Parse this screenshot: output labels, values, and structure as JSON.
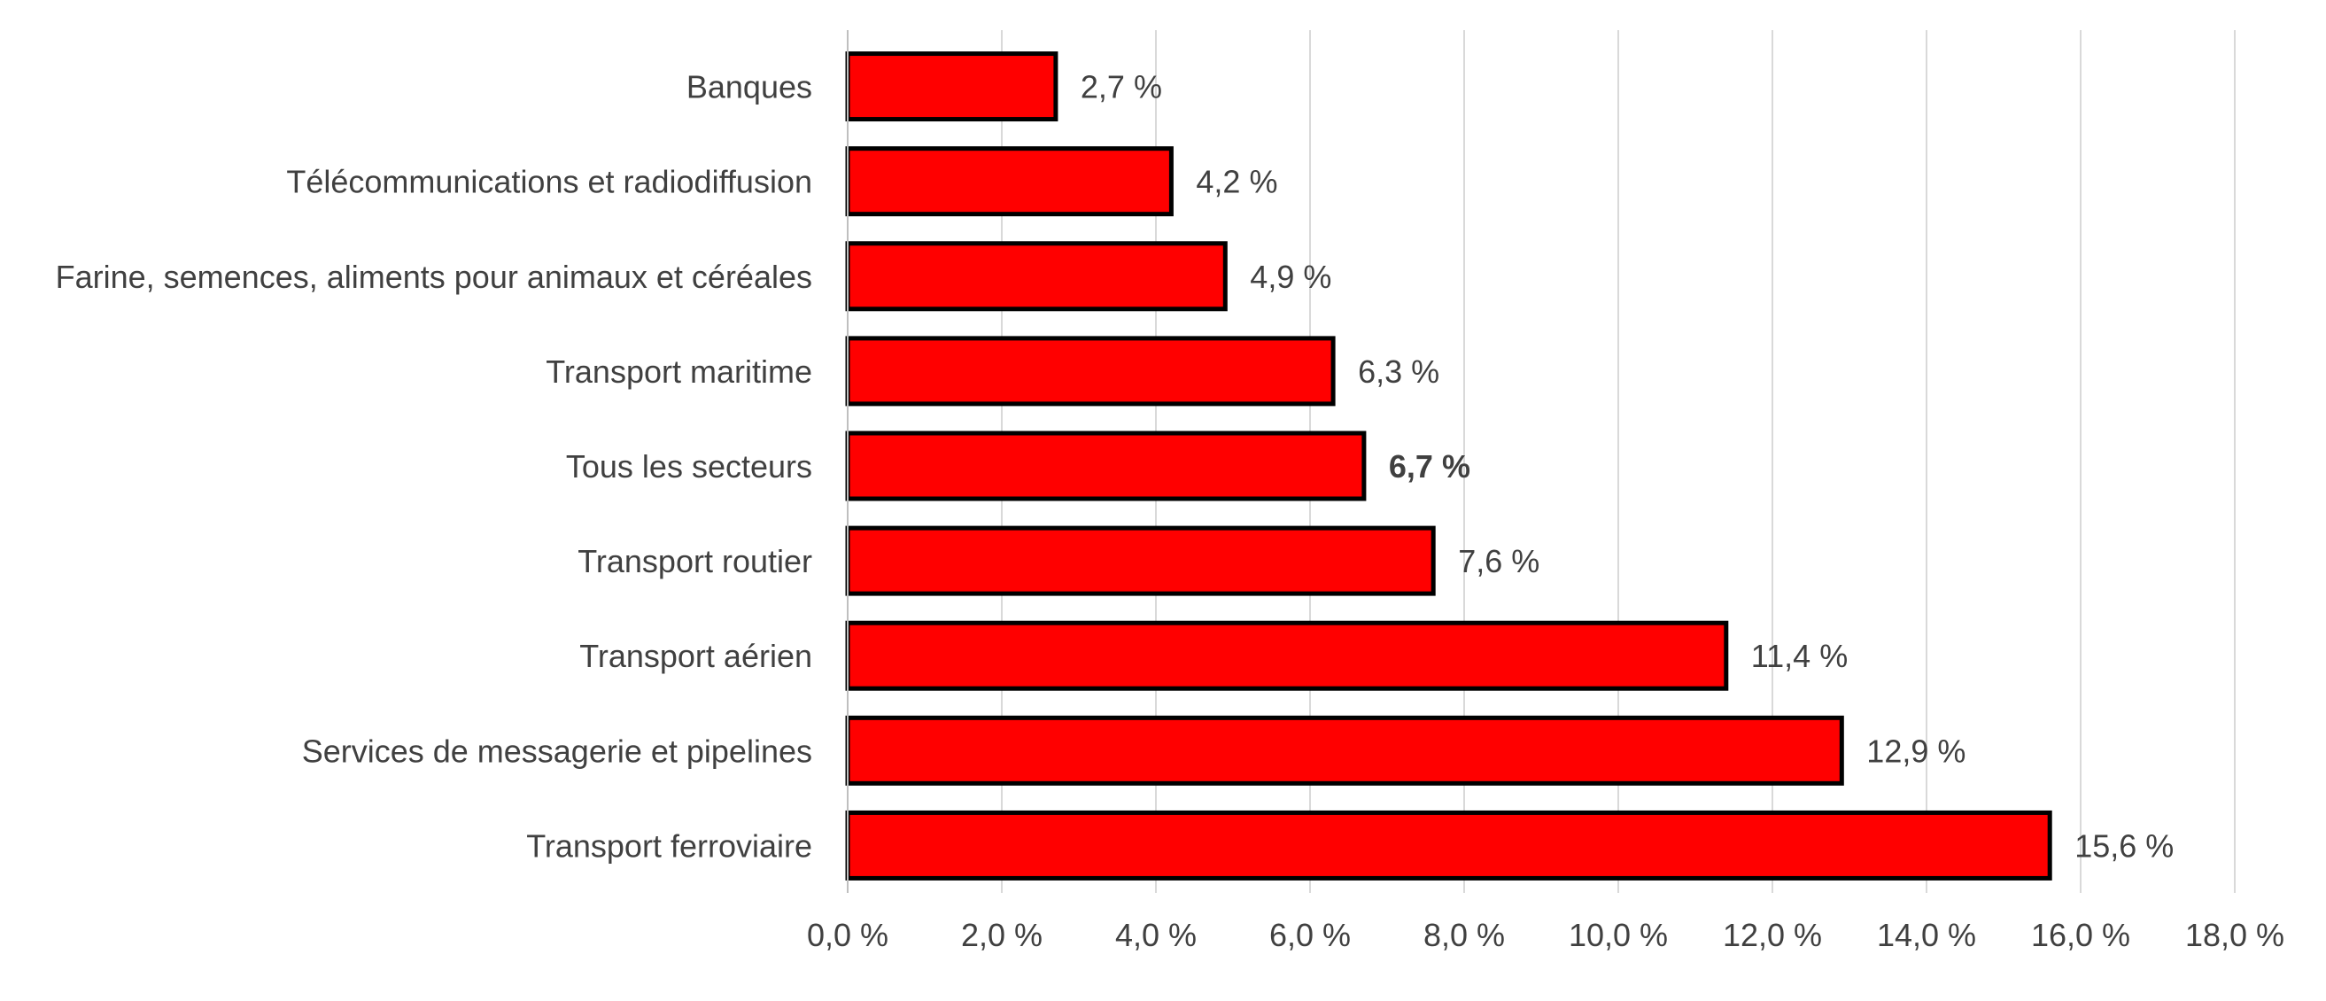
{
  "chart_data": {
    "type": "bar",
    "orientation": "horizontal",
    "title": "",
    "xlabel": "",
    "ylabel": "",
    "categories": [
      "Banques",
      "Télécommunications et radiodiffusion",
      "Farine, semences, aliments pour animaux et céréales",
      "Transport maritime",
      "Tous les secteurs",
      "Transport routier",
      "Transport aérien",
      "Services de messagerie et pipelines",
      "Transport ferroviaire"
    ],
    "values": [
      2.7,
      4.2,
      4.9,
      6.3,
      6.7,
      7.6,
      11.4,
      12.9,
      15.6
    ],
    "value_labels": [
      "2,7 %",
      "4,2 %",
      "4,9 %",
      "6,3 %",
      "6,7 %",
      "7,6 %",
      "11,4 %",
      "12,9 %",
      "15,6 %"
    ],
    "bold_label_index": 4,
    "xlim": [
      0,
      18
    ],
    "x_ticks": [
      0,
      2,
      4,
      6,
      8,
      10,
      12,
      14,
      16,
      18
    ],
    "x_tick_labels": [
      "0,0 %",
      "2,0 %",
      "4,0 %",
      "6,0 %",
      "8,0 %",
      "10,0 %",
      "12,0 %",
      "14,0 %",
      "16,0 %",
      "18,0 %"
    ],
    "grid": "vertical",
    "legend": "none",
    "colors": {
      "bar_fill": "#ff0000",
      "bar_stroke": "#000000",
      "grid": "#d9d9d9",
      "axis": "#bfbfbf",
      "text": "#404040"
    }
  }
}
